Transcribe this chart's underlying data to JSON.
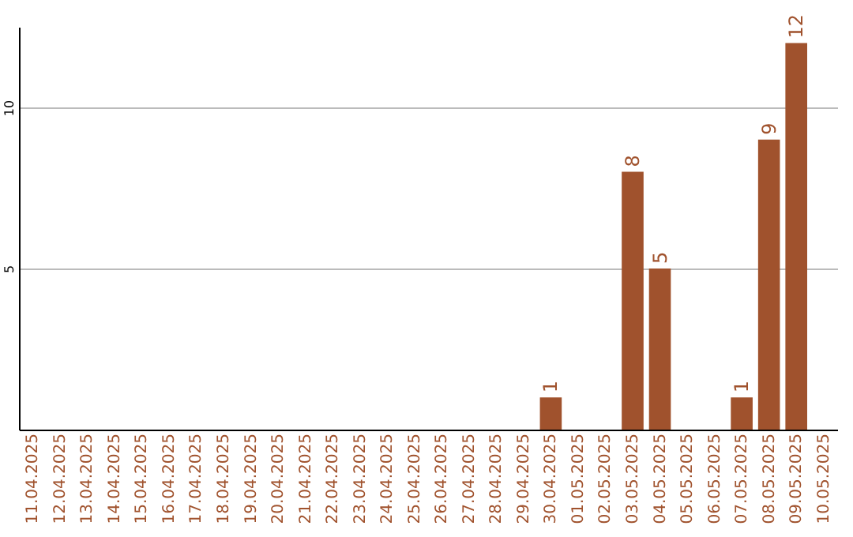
{
  "chart_data": {
    "type": "bar",
    "categories": [
      "11.04.2025",
      "12.04.2025",
      "13.04.2025",
      "14.04.2025",
      "15.04.2025",
      "16.04.2025",
      "17.04.2025",
      "18.04.2025",
      "19.04.2025",
      "20.04.2025",
      "21.04.2025",
      "22.04.2025",
      "23.04.2025",
      "24.04.2025",
      "25.04.2025",
      "26.04.2025",
      "27.04.2025",
      "28.04.2025",
      "29.04.2025",
      "30.04.2025",
      "01.05.2025",
      "02.05.2025",
      "03.05.2025",
      "04.05.2025",
      "05.05.2025",
      "06.05.2025",
      "07.05.2025",
      "08.05.2025",
      "09.05.2025",
      "10.05.2025"
    ],
    "values": [
      0,
      0,
      0,
      0,
      0,
      0,
      0,
      0,
      0,
      0,
      0,
      0,
      0,
      0,
      0,
      0,
      0,
      0,
      0,
      1,
      0,
      0,
      8,
      5,
      0,
      0,
      1,
      9,
      12,
      0
    ],
    "value_labels": [
      null,
      null,
      null,
      null,
      null,
      null,
      null,
      null,
      null,
      null,
      null,
      null,
      null,
      null,
      null,
      null,
      null,
      null,
      null,
      "1",
      null,
      null,
      "8",
      "5",
      null,
      null,
      "1",
      "9",
      "12",
      null
    ],
    "color": "#a0522d",
    "ylim": [
      0,
      12.5
    ],
    "yticks": [
      5,
      10
    ],
    "grid": "y"
  }
}
